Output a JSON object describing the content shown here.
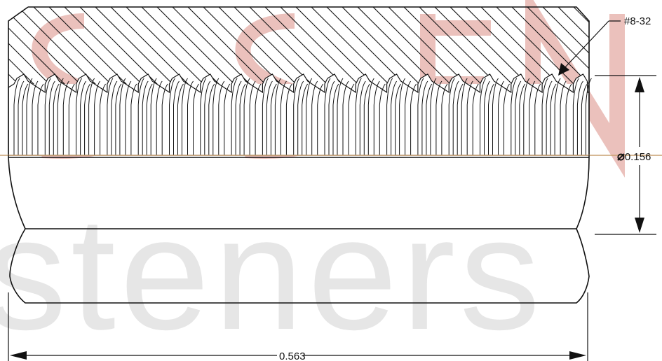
{
  "drawing": {
    "thread_callout": "#8-32",
    "diameter_symbol": "⌀",
    "diameter_value": "0.156",
    "length_value": "0.563"
  },
  "watermark": {
    "word": "steners",
    "top_color": "#e8b7b2"
  },
  "colors": {
    "line": "#111111",
    "centerline": "#c9a070"
  }
}
